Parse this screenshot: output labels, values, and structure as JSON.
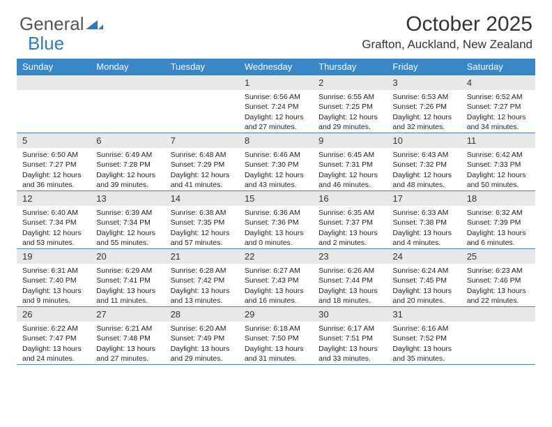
{
  "logo": {
    "part1": "General",
    "part2": "Blue"
  },
  "title": "October 2025",
  "location": "Grafton, Auckland, New Zealand",
  "colors": {
    "header_bg": "#3a87c8",
    "header_text": "#ffffff",
    "daynum_bg": "#e8e8e8",
    "week_border": "#4b7eb5",
    "logo_gray": "#6a6a6a",
    "logo_blue": "#2e7bc0"
  },
  "day_names": [
    "Sunday",
    "Monday",
    "Tuesday",
    "Wednesday",
    "Thursday",
    "Friday",
    "Saturday"
  ],
  "weeks": [
    {
      "nums": [
        "",
        "",
        "",
        "1",
        "2",
        "3",
        "4"
      ],
      "cells": [
        null,
        null,
        null,
        {
          "sunrise": "6:56 AM",
          "sunset": "7:24 PM",
          "dl_h": 12,
          "dl_m": 27
        },
        {
          "sunrise": "6:55 AM",
          "sunset": "7:25 PM",
          "dl_h": 12,
          "dl_m": 29
        },
        {
          "sunrise": "6:53 AM",
          "sunset": "7:26 PM",
          "dl_h": 12,
          "dl_m": 32
        },
        {
          "sunrise": "6:52 AM",
          "sunset": "7:27 PM",
          "dl_h": 12,
          "dl_m": 34
        }
      ]
    },
    {
      "nums": [
        "5",
        "6",
        "7",
        "8",
        "9",
        "10",
        "11"
      ],
      "cells": [
        {
          "sunrise": "6:50 AM",
          "sunset": "7:27 PM",
          "dl_h": 12,
          "dl_m": 36
        },
        {
          "sunrise": "6:49 AM",
          "sunset": "7:28 PM",
          "dl_h": 12,
          "dl_m": 39
        },
        {
          "sunrise": "6:48 AM",
          "sunset": "7:29 PM",
          "dl_h": 12,
          "dl_m": 41
        },
        {
          "sunrise": "6:46 AM",
          "sunset": "7:30 PM",
          "dl_h": 12,
          "dl_m": 43
        },
        {
          "sunrise": "6:45 AM",
          "sunset": "7:31 PM",
          "dl_h": 12,
          "dl_m": 46
        },
        {
          "sunrise": "6:43 AM",
          "sunset": "7:32 PM",
          "dl_h": 12,
          "dl_m": 48
        },
        {
          "sunrise": "6:42 AM",
          "sunset": "7:33 PM",
          "dl_h": 12,
          "dl_m": 50
        }
      ]
    },
    {
      "nums": [
        "12",
        "13",
        "14",
        "15",
        "16",
        "17",
        "18"
      ],
      "cells": [
        {
          "sunrise": "6:40 AM",
          "sunset": "7:34 PM",
          "dl_h": 12,
          "dl_m": 53
        },
        {
          "sunrise": "6:39 AM",
          "sunset": "7:34 PM",
          "dl_h": 12,
          "dl_m": 55
        },
        {
          "sunrise": "6:38 AM",
          "sunset": "7:35 PM",
          "dl_h": 12,
          "dl_m": 57
        },
        {
          "sunrise": "6:36 AM",
          "sunset": "7:36 PM",
          "dl_h": 13,
          "dl_m": 0
        },
        {
          "sunrise": "6:35 AM",
          "sunset": "7:37 PM",
          "dl_h": 13,
          "dl_m": 2
        },
        {
          "sunrise": "6:33 AM",
          "sunset": "7:38 PM",
          "dl_h": 13,
          "dl_m": 4
        },
        {
          "sunrise": "6:32 AM",
          "sunset": "7:39 PM",
          "dl_h": 13,
          "dl_m": 6
        }
      ]
    },
    {
      "nums": [
        "19",
        "20",
        "21",
        "22",
        "23",
        "24",
        "25"
      ],
      "cells": [
        {
          "sunrise": "6:31 AM",
          "sunset": "7:40 PM",
          "dl_h": 13,
          "dl_m": 9
        },
        {
          "sunrise": "6:29 AM",
          "sunset": "7:41 PM",
          "dl_h": 13,
          "dl_m": 11
        },
        {
          "sunrise": "6:28 AM",
          "sunset": "7:42 PM",
          "dl_h": 13,
          "dl_m": 13
        },
        {
          "sunrise": "6:27 AM",
          "sunset": "7:43 PM",
          "dl_h": 13,
          "dl_m": 16
        },
        {
          "sunrise": "6:26 AM",
          "sunset": "7:44 PM",
          "dl_h": 13,
          "dl_m": 18
        },
        {
          "sunrise": "6:24 AM",
          "sunset": "7:45 PM",
          "dl_h": 13,
          "dl_m": 20
        },
        {
          "sunrise": "6:23 AM",
          "sunset": "7:46 PM",
          "dl_h": 13,
          "dl_m": 22
        }
      ]
    },
    {
      "nums": [
        "26",
        "27",
        "28",
        "29",
        "30",
        "31",
        ""
      ],
      "cells": [
        {
          "sunrise": "6:22 AM",
          "sunset": "7:47 PM",
          "dl_h": 13,
          "dl_m": 24
        },
        {
          "sunrise": "6:21 AM",
          "sunset": "7:48 PM",
          "dl_h": 13,
          "dl_m": 27
        },
        {
          "sunrise": "6:20 AM",
          "sunset": "7:49 PM",
          "dl_h": 13,
          "dl_m": 29
        },
        {
          "sunrise": "6:18 AM",
          "sunset": "7:50 PM",
          "dl_h": 13,
          "dl_m": 31
        },
        {
          "sunrise": "6:17 AM",
          "sunset": "7:51 PM",
          "dl_h": 13,
          "dl_m": 33
        },
        {
          "sunrise": "6:16 AM",
          "sunset": "7:52 PM",
          "dl_h": 13,
          "dl_m": 35
        },
        null
      ]
    }
  ],
  "labels": {
    "sunrise": "Sunrise:",
    "sunset": "Sunset:",
    "daylight_prefix": "Daylight:",
    "hours_word": "hours",
    "and_word": "and",
    "minutes_word": "minutes."
  }
}
